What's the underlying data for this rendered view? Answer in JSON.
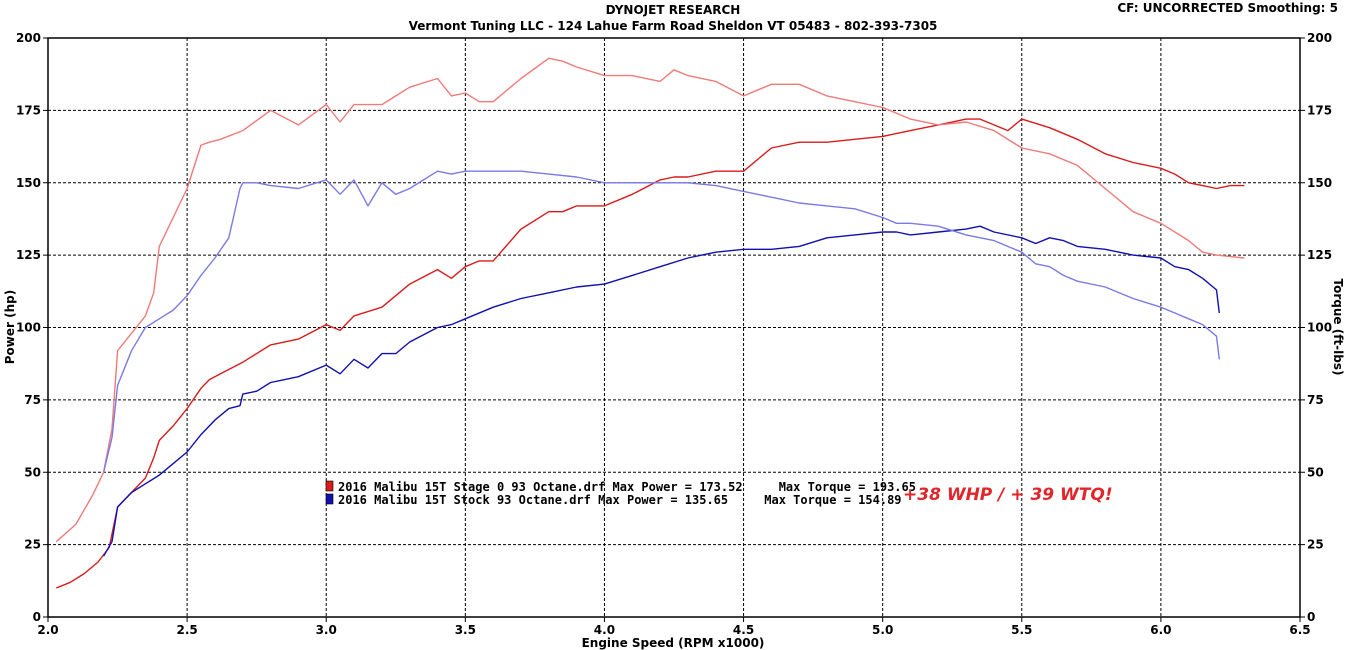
{
  "header": {
    "title": "DYNOJET RESEARCH",
    "subtitle": "Vermont Tuning LLC - 124 Lahue Farm Road Sheldon VT 05483 - 802-393-7305",
    "settings": "CF: UNCORRECTED  Smoothing: 5"
  },
  "colors": {
    "stage0": "#d81c1c",
    "stage0_torque": "#f07a7a",
    "stock": "#1010b0",
    "stock_torque": "#7a7ae6",
    "callout": "#e0262a"
  },
  "legend": [
    {
      "label": "2016 Malibu 15T Stage 0 93 Octane.drf Max Power = 173.52     Max Torque = 193.65",
      "color": "#d81c1c"
    },
    {
      "label": "2016 Malibu 15T Stock 93 Octane.drf Max Power = 135.65     Max Torque = 154.89",
      "color": "#1010b0"
    }
  ],
  "annotation": "+38 WHP / + 39 WTQ!",
  "chart_data": {
    "type": "line",
    "xlabel": "Engine Speed (RPM x1000)",
    "ylabel": "Power (hp)",
    "y2label": "Torque (ft-lbs)",
    "xlim": [
      2.0,
      6.5
    ],
    "ylim": [
      0,
      200
    ],
    "y2lim": [
      0,
      200
    ],
    "xticks": [
      "2.0",
      "2.5",
      "3.0",
      "3.5",
      "4.0",
      "4.5",
      "5.0",
      "5.5",
      "6.0",
      "6.5"
    ],
    "yticks": [
      "0",
      "25",
      "50",
      "75",
      "100",
      "125",
      "150",
      "175",
      "200"
    ],
    "grid": true,
    "series": [
      {
        "name": "2016 Malibu 15T Stage 0 93 Octane.drf - Power",
        "color": "#d81c1c",
        "x": [
          2.03,
          2.08,
          2.13,
          2.18,
          2.22,
          2.25,
          2.3,
          2.35,
          2.38,
          2.4,
          2.45,
          2.5,
          2.55,
          2.58,
          2.62,
          2.7,
          2.8,
          2.9,
          3.0,
          3.05,
          3.1,
          3.2,
          3.3,
          3.4,
          3.45,
          3.5,
          3.55,
          3.6,
          3.7,
          3.8,
          3.85,
          3.9,
          4.0,
          4.1,
          4.2,
          4.25,
          4.3,
          4.4,
          4.5,
          4.6,
          4.7,
          4.8,
          4.9,
          5.0,
          5.1,
          5.2,
          5.3,
          5.35,
          5.4,
          5.45,
          5.5,
          5.6,
          5.7,
          5.8,
          5.9,
          6.0,
          6.05,
          6.1,
          6.15,
          6.2,
          6.25,
          6.3
        ],
        "values": [
          10,
          12,
          15,
          19,
          24,
          38,
          43,
          48,
          55,
          61,
          66,
          72,
          79,
          82,
          84,
          88,
          94,
          96,
          101,
          99,
          104,
          107,
          115,
          120,
          117,
          121,
          123,
          123,
          134,
          140,
          140,
          142,
          142,
          146,
          151,
          152,
          152,
          154,
          154,
          162,
          164,
          164,
          165,
          166,
          168,
          170,
          172,
          172,
          170,
          168,
          172,
          169,
          165,
          160,
          157,
          155,
          153,
          150,
          149,
          148,
          149,
          149
        ]
      },
      {
        "name": "2016 Malibu 15T Stage 0 93 Octane.drf - Torque",
        "color": "#f07a7a",
        "x": [
          2.03,
          2.1,
          2.16,
          2.2,
          2.23,
          2.25,
          2.3,
          2.35,
          2.38,
          2.4,
          2.45,
          2.5,
          2.55,
          2.58,
          2.62,
          2.7,
          2.8,
          2.9,
          3.0,
          3.05,
          3.1,
          3.2,
          3.3,
          3.4,
          3.45,
          3.5,
          3.55,
          3.6,
          3.7,
          3.8,
          3.85,
          3.9,
          4.0,
          4.1,
          4.2,
          4.25,
          4.3,
          4.4,
          4.5,
          4.6,
          4.7,
          4.8,
          4.9,
          5.0,
          5.1,
          5.2,
          5.3,
          5.4,
          5.5,
          5.6,
          5.7,
          5.8,
          5.9,
          6.0,
          6.1,
          6.15,
          6.2,
          6.3
        ],
        "values": [
          26,
          32,
          42,
          50,
          65,
          92,
          98,
          104,
          112,
          128,
          138,
          148,
          163,
          164,
          165,
          168,
          175,
          170,
          177,
          171,
          177,
          177,
          183,
          186,
          180,
          181,
          178,
          178,
          186,
          193,
          192,
          190,
          187,
          187,
          185,
          189,
          187,
          185,
          180,
          184,
          184,
          180,
          178,
          176,
          172,
          170,
          171,
          168,
          162,
          160,
          156,
          148,
          140,
          136,
          130,
          126,
          125,
          124
        ]
      },
      {
        "name": "2016 Malibu 15T Stock 93 Octane.drf - Power",
        "color": "#1010b0",
        "x": [
          2.2,
          2.23,
          2.25,
          2.3,
          2.35,
          2.4,
          2.45,
          2.5,
          2.55,
          2.6,
          2.65,
          2.69,
          2.7,
          2.75,
          2.8,
          2.9,
          3.0,
          3.05,
          3.1,
          3.15,
          3.2,
          3.25,
          3.3,
          3.4,
          3.45,
          3.5,
          3.6,
          3.7,
          3.8,
          3.9,
          4.0,
          4.1,
          4.2,
          4.3,
          4.4,
          4.5,
          4.6,
          4.7,
          4.8,
          4.9,
          5.0,
          5.05,
          5.1,
          5.2,
          5.3,
          5.35,
          5.4,
          5.5,
          5.55,
          5.6,
          5.65,
          5.7,
          5.8,
          5.9,
          6.0,
          6.05,
          6.1,
          6.15,
          6.2,
          6.21
        ],
        "values": [
          21,
          26,
          38,
          43,
          46,
          49,
          53,
          57,
          63,
          68,
          72,
          73,
          77,
          78,
          81,
          83,
          87,
          84,
          89,
          86,
          91,
          91,
          95,
          100,
          101,
          103,
          107,
          110,
          112,
          114,
          115,
          118,
          121,
          124,
          126,
          127,
          127,
          128,
          131,
          132,
          133,
          133,
          132,
          133,
          134,
          135,
          133,
          131,
          129,
          131,
          130,
          128,
          127,
          125,
          124,
          121,
          120,
          117,
          113,
          105
        ]
      },
      {
        "name": "2016 Malibu 15T Stock 93 Octane.drf - Torque",
        "color": "#7a7ae6",
        "x": [
          2.2,
          2.23,
          2.25,
          2.3,
          2.35,
          2.4,
          2.45,
          2.5,
          2.55,
          2.6,
          2.65,
          2.69,
          2.7,
          2.75,
          2.8,
          2.9,
          3.0,
          3.05,
          3.1,
          3.15,
          3.2,
          3.25,
          3.3,
          3.4,
          3.45,
          3.5,
          3.6,
          3.7,
          3.8,
          3.9,
          4.0,
          4.1,
          4.2,
          4.3,
          4.4,
          4.5,
          4.6,
          4.7,
          4.8,
          4.9,
          5.0,
          5.05,
          5.1,
          5.2,
          5.3,
          5.4,
          5.5,
          5.55,
          5.6,
          5.65,
          5.7,
          5.8,
          5.9,
          6.0,
          6.05,
          6.1,
          6.15,
          6.2,
          6.21
        ],
        "values": [
          50,
          62,
          80,
          92,
          100,
          103,
          106,
          111,
          118,
          124,
          131,
          148,
          150,
          150,
          149,
          148,
          151,
          146,
          151,
          142,
          150,
          146,
          148,
          154,
          153,
          154,
          154,
          154,
          153,
          152,
          150,
          150,
          150,
          150,
          149,
          147,
          145,
          143,
          142,
          141,
          138,
          136,
          136,
          135,
          132,
          130,
          126,
          122,
          121,
          118,
          116,
          114,
          110,
          107,
          105,
          103,
          101,
          97,
          89
        ]
      }
    ]
  }
}
